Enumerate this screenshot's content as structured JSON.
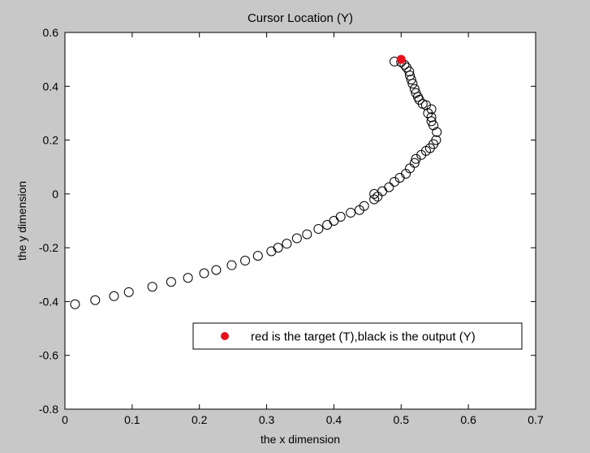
{
  "chart_data": {
    "type": "scatter",
    "title": "Cursor Location (Y)",
    "xlabel": "the x dimension",
    "ylabel": "the y dimension",
    "xlim": [
      0,
      0.7
    ],
    "ylim": [
      -0.8,
      0.6
    ],
    "xticks": [
      0,
      0.1,
      0.2,
      0.3,
      0.4,
      0.5,
      0.6,
      0.7
    ],
    "xtick_labels": [
      "0",
      "0.1",
      "0.2",
      "0.3",
      "0.4",
      "0.5",
      "0.6",
      "0.7"
    ],
    "yticks": [
      -0.8,
      -0.6,
      -0.4,
      -0.2,
      0,
      0.2,
      0.4,
      0.6
    ],
    "ytick_labels": [
      "-0.8",
      "-0.6",
      "-0.4",
      "-0.2",
      "0",
      "0.2",
      "0.4",
      "0.6"
    ],
    "grid": false,
    "legend": {
      "placement": "lower-right",
      "text": "red is the target (T),black is the output (Y)"
    },
    "series": [
      {
        "marker": "filled-circle",
        "color": "#e8101a",
        "points": [
          [
            0.5,
            0.5
          ]
        ]
      },
      {
        "marker": "open-circle",
        "color": "#000000",
        "points": [
          [
            0.015,
            -0.41
          ],
          [
            0.045,
            -0.395
          ],
          [
            0.073,
            -0.38
          ],
          [
            0.095,
            -0.365
          ],
          [
            0.13,
            -0.345
          ],
          [
            0.158,
            -0.327
          ],
          [
            0.183,
            -0.312
          ],
          [
            0.207,
            -0.295
          ],
          [
            0.225,
            -0.283
          ],
          [
            0.248,
            -0.265
          ],
          [
            0.268,
            -0.248
          ],
          [
            0.287,
            -0.23
          ],
          [
            0.307,
            -0.213
          ],
          [
            0.317,
            -0.2
          ],
          [
            0.33,
            -0.185
          ],
          [
            0.345,
            -0.165
          ],
          [
            0.36,
            -0.15
          ],
          [
            0.377,
            -0.13
          ],
          [
            0.39,
            -0.115
          ],
          [
            0.4,
            -0.1
          ],
          [
            0.41,
            -0.085
          ],
          [
            0.425,
            -0.07
          ],
          [
            0.438,
            -0.06
          ],
          [
            0.445,
            -0.045
          ],
          [
            0.46,
            -0.02
          ],
          [
            0.46,
            0.0
          ],
          [
            0.465,
            -0.01
          ],
          [
            0.472,
            0.01
          ],
          [
            0.482,
            0.025
          ],
          [
            0.49,
            0.045
          ],
          [
            0.498,
            0.06
          ],
          [
            0.507,
            0.075
          ],
          [
            0.513,
            0.095
          ],
          [
            0.52,
            0.115
          ],
          [
            0.522,
            0.13
          ],
          [
            0.53,
            0.145
          ],
          [
            0.537,
            0.16
          ],
          [
            0.543,
            0.17
          ],
          [
            0.548,
            0.185
          ],
          [
            0.552,
            0.2
          ],
          [
            0.553,
            0.23
          ],
          [
            0.548,
            0.255
          ],
          [
            0.545,
            0.27
          ],
          [
            0.545,
            0.285
          ],
          [
            0.54,
            0.3
          ],
          [
            0.545,
            0.315
          ],
          [
            0.537,
            0.33
          ],
          [
            0.532,
            0.335
          ],
          [
            0.527,
            0.35
          ],
          [
            0.525,
            0.36
          ],
          [
            0.522,
            0.375
          ],
          [
            0.52,
            0.39
          ],
          [
            0.517,
            0.41
          ],
          [
            0.515,
            0.425
          ],
          [
            0.513,
            0.44
          ],
          [
            0.512,
            0.455
          ],
          [
            0.508,
            0.47
          ],
          [
            0.505,
            0.48
          ],
          [
            0.5,
            0.49
          ],
          [
            0.49,
            0.492
          ]
        ]
      }
    ]
  }
}
